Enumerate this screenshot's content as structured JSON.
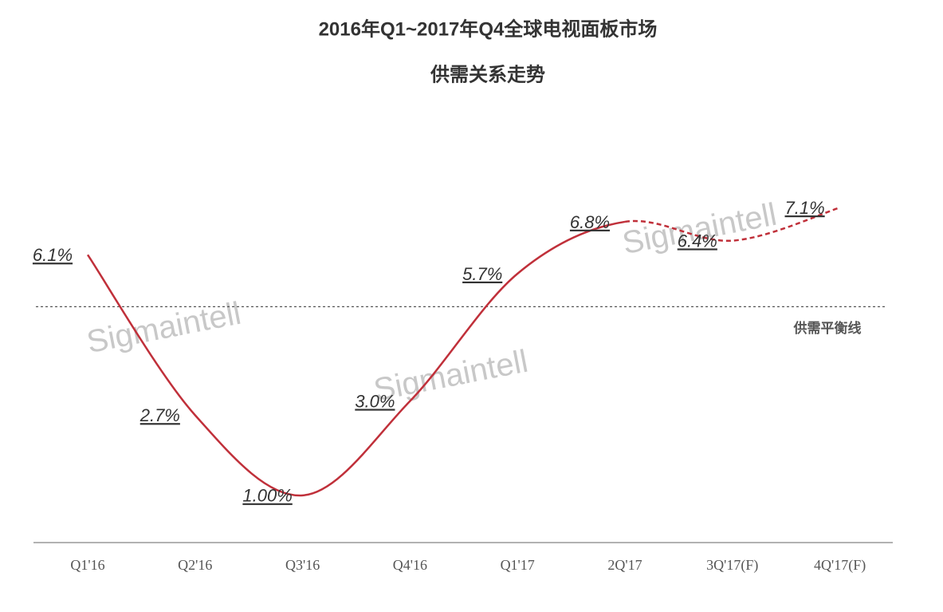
{
  "chart_data": {
    "type": "line",
    "title": "2016年Q1~2017年Q4全球电视面板市场",
    "subtitle": "供需关系走势",
    "categories": [
      "Q1'16",
      "Q2'16",
      "Q3'16",
      "Q4'16",
      "Q1'17",
      "2Q'17",
      "3Q'17(F)",
      "4Q'17(F)"
    ],
    "values": [
      6.1,
      2.7,
      1.0,
      3.0,
      5.7,
      6.8,
      6.4,
      7.1
    ],
    "value_labels": [
      "6.1%",
      "2.7%",
      "1.00%",
      "3.0%",
      "5.7%",
      "6.8%",
      "6.4%",
      "7.1%"
    ],
    "color": "#c0303a",
    "dashed_from": 5,
    "ylim": [
      0,
      8
    ],
    "balance_line": {
      "value": 5.0,
      "label": "供需平衡线"
    },
    "watermark": "Sigmaintell"
  }
}
